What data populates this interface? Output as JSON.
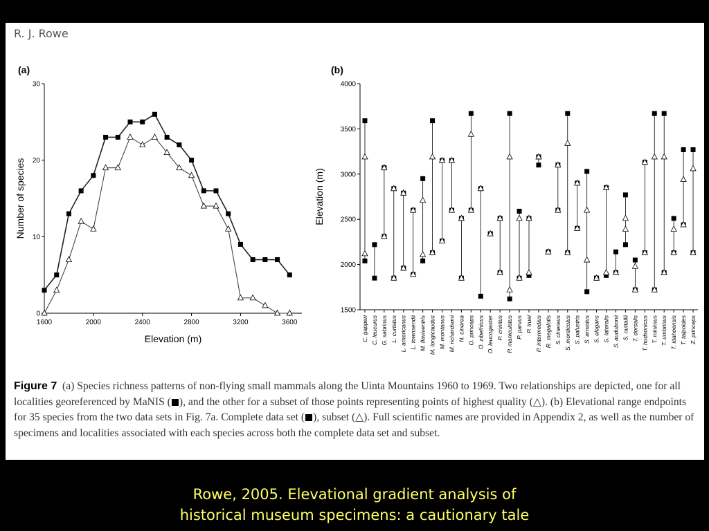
{
  "author": "R. J. Rowe",
  "chart_data": [
    {
      "panel": "(a)",
      "type": "line",
      "xlabel": "Elevation (m)",
      "ylabel": "Number of species",
      "xlim": [
        1600,
        3700
      ],
      "ylim": [
        0,
        30
      ],
      "xticks": [
        1600,
        2000,
        2400,
        2800,
        3200,
        3600
      ],
      "yticks": [
        0,
        10,
        20,
        30
      ],
      "series": [
        {
          "marker": "filled-square",
          "x": [
            1600,
            1700,
            1800,
            1900,
            2000,
            2100,
            2200,
            2300,
            2400,
            2500,
            2600,
            2700,
            2800,
            2900,
            3000,
            3100,
            3200,
            3300,
            3400,
            3500,
            3600
          ],
          "y": [
            3,
            5,
            13,
            16,
            18,
            23,
            23,
            25,
            25,
            26,
            23,
            22,
            20,
            16,
            16,
            13,
            9,
            7,
            7,
            7,
            5
          ]
        },
        {
          "marker": "open-triangle",
          "x": [
            1600,
            1700,
            1800,
            1900,
            2000,
            2100,
            2200,
            2300,
            2400,
            2500,
            2600,
            2700,
            2800,
            2900,
            3000,
            3100,
            3200,
            3300,
            3400,
            3500,
            3600
          ],
          "y": [
            0,
            3,
            7,
            12,
            11,
            19,
            19,
            23,
            22,
            23,
            21,
            19,
            18,
            14,
            14,
            11,
            2,
            2,
            1,
            0,
            0
          ]
        }
      ]
    },
    {
      "panel": "(b)",
      "type": "range",
      "ylabel": "Elevation (m)",
      "ylim": [
        1500,
        4000
      ],
      "yticks": [
        1500,
        2000,
        2500,
        3000,
        3500,
        4000
      ],
      "species": [
        {
          "name": "C. gapperi",
          "complete": [
            2040,
            3590
          ],
          "subset": [
            2120,
            3190
          ]
        },
        {
          "name": "C. leucurus",
          "complete": [
            1850,
            2220
          ],
          "subset": null
        },
        {
          "name": "G. sabrinus",
          "complete": [
            2310,
            3070
          ],
          "subset": [
            2310,
            3070
          ]
        },
        {
          "name": "L. curtatus",
          "complete": [
            1850,
            2840
          ],
          "subset": [
            1850,
            2840
          ]
        },
        {
          "name": "L. americanus",
          "complete": [
            1960,
            2790
          ],
          "subset": [
            1960,
            2790
          ]
        },
        {
          "name": "L. townsendii",
          "complete": [
            1890,
            2600
          ],
          "subset": [
            1890,
            2600
          ]
        },
        {
          "name": "M. flaviventris",
          "complete": [
            2040,
            2950
          ],
          "subset": [
            2110,
            2710
          ]
        },
        {
          "name": "M. longicaudus",
          "complete": [
            2130,
            3590
          ],
          "subset": [
            2130,
            3190
          ]
        },
        {
          "name": "M. montanus",
          "complete": [
            2260,
            3150
          ],
          "subset": [
            2260,
            3150
          ]
        },
        {
          "name": "M. richardsoni",
          "complete": [
            2600,
            3150
          ],
          "subset": [
            2600,
            3150
          ]
        },
        {
          "name": "N. cinerea",
          "complete": [
            1850,
            2510
          ],
          "subset": [
            1850,
            2510
          ]
        },
        {
          "name": "O. princeps",
          "complete": [
            2600,
            3670
          ],
          "subset": [
            2600,
            3440
          ]
        },
        {
          "name": "O. zibethicus",
          "complete": [
            1650,
            2840
          ],
          "subset": [
            2840,
            2840
          ]
        },
        {
          "name": "O. leucogaster",
          "complete": [
            2340,
            2340
          ],
          "subset": [
            2340,
            2340
          ]
        },
        {
          "name": "P. crinitus",
          "complete": [
            1910,
            2510
          ],
          "subset": [
            1910,
            2510
          ]
        },
        {
          "name": "P. maniculatus",
          "complete": [
            1620,
            3670
          ],
          "subset": [
            1720,
            3190
          ]
        },
        {
          "name": "P. parvus",
          "complete": [
            1850,
            2590
          ],
          "subset": [
            1850,
            2510
          ]
        },
        {
          "name": "P. truei",
          "complete": [
            1880,
            2510
          ],
          "subset": [
            1910,
            2510
          ]
        },
        {
          "name": "P. intermedius",
          "complete": [
            3100,
            3190
          ],
          "subset": [
            3190,
            3190
          ]
        },
        {
          "name": "R. megalotis",
          "complete": [
            2140,
            2140
          ],
          "subset": [
            2140,
            2140
          ]
        },
        {
          "name": "S. cinereus",
          "complete": [
            2600,
            3100
          ],
          "subset": [
            2600,
            3100
          ]
        },
        {
          "name": "S. monticolus",
          "complete": [
            2130,
            3670
          ],
          "subset": [
            2130,
            3340
          ]
        },
        {
          "name": "S. palustris",
          "complete": [
            2400,
            2900
          ],
          "subset": [
            2400,
            2900
          ]
        },
        {
          "name": "S. armatus",
          "complete": [
            1700,
            3030
          ],
          "subset": [
            2050,
            2600
          ]
        },
        {
          "name": "S. elegans",
          "complete": [
            1850,
            1850
          ],
          "subset": [
            1850,
            1850
          ]
        },
        {
          "name": "S. lateralis",
          "complete": [
            1880,
            2850
          ],
          "subset": [
            1910,
            2850
          ]
        },
        {
          "name": "S. audubonii",
          "complete": [
            1910,
            2140
          ],
          "subset": [
            1910,
            1910
          ]
        },
        {
          "name": "S. nuttallii",
          "complete": [
            2220,
            2770
          ],
          "subset": [
            2390,
            2510
          ]
        },
        {
          "name": "T. dorsalis",
          "complete": [
            1720,
            2050
          ],
          "subset": [
            1720,
            1980
          ]
        },
        {
          "name": "T. hudsonicus",
          "complete": [
            2130,
            3130
          ],
          "subset": [
            2130,
            3130
          ]
        },
        {
          "name": "T. minimus",
          "complete": [
            1720,
            3670
          ],
          "subset": [
            1720,
            3190
          ]
        },
        {
          "name": "T. umbrinus",
          "complete": [
            1910,
            3670
          ],
          "subset": [
            1910,
            3190
          ]
        },
        {
          "name": "T. idahoensis",
          "complete": [
            2130,
            2510
          ],
          "subset": [
            2130,
            2390
          ]
        },
        {
          "name": "T. talpoides",
          "complete": [
            2440,
            3270
          ],
          "subset": [
            2440,
            2940
          ]
        },
        {
          "name": "Z. princeps",
          "complete": [
            2130,
            3270
          ],
          "subset": [
            2130,
            3060
          ]
        }
      ]
    }
  ],
  "caption": {
    "figure": "Figure 7",
    "part1": "(a) Species richness patterns of non-flying small mammals along the Uinta Mountains 1960 to 1969. Two relationships are depicted, one for all localities georeferenced by MaNIS (",
    "part2": "), and the other for a subset of those points representing points of highest quality (",
    "part3": "). (b) Elevational range endpoints for 35 species from the two data sets in Fig. 7a. Complete data set (",
    "part4": "), subset (",
    "part5": "). Full scientific names are provided in Appendix 2, as well as the number of specimens and localities associated with each species across both the complete data set and subset.",
    "triangle": "△"
  },
  "footer": {
    "line1": "Rowe, 2005. Elevational gradient analysis of",
    "line2": "historical museum specimens: a cautionary tale"
  }
}
